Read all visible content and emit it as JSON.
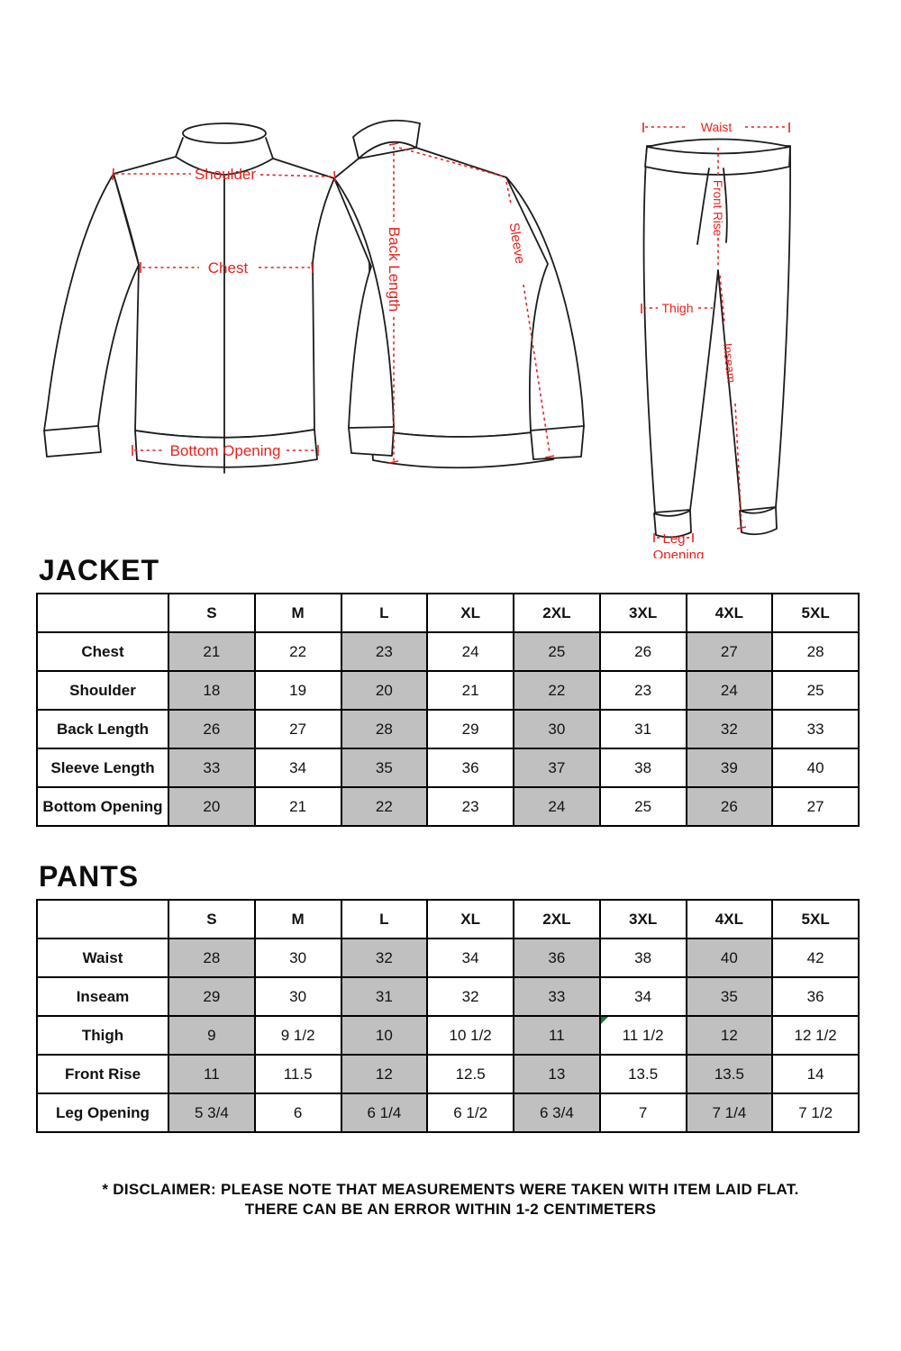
{
  "colors": {
    "accent_red": "#e8221c",
    "table_shade": "#c0c0c0",
    "comment_marker_green": "#1e7d32",
    "line_black": "#1c1c1c"
  },
  "diagram": {
    "labels": {
      "shoulder": "Shoulder",
      "chest": "Chest",
      "bottom_opening": "Bottom Opening",
      "back_length": "Back Length",
      "sleeve": "Sleeve",
      "waist": "Waist",
      "front_rise": "Front Rise",
      "thigh": "Thigh",
      "inseam": "Inseam",
      "leg_opening_line1": "Leg",
      "leg_opening_line2": "Opening"
    }
  },
  "jacket_section": {
    "title": "JACKET",
    "table": {
      "columns": [
        "S",
        "M",
        "L",
        "XL",
        "2XL",
        "3XL",
        "4XL",
        "5XL"
      ],
      "rows": [
        {
          "label": "Chest",
          "values": [
            "21",
            "22",
            "23",
            "24",
            "25",
            "26",
            "27",
            "28"
          ]
        },
        {
          "label": "Shoulder",
          "values": [
            "18",
            "19",
            "20",
            "21",
            "22",
            "23",
            "24",
            "25"
          ]
        },
        {
          "label": "Back Length",
          "values": [
            "26",
            "27",
            "28",
            "29",
            "30",
            "31",
            "32",
            "33"
          ]
        },
        {
          "label": "Sleeve Length",
          "values": [
            "33",
            "34",
            "35",
            "36",
            "37",
            "38",
            "39",
            "40"
          ]
        },
        {
          "label": "Bottom Opening",
          "values": [
            "20",
            "21",
            "22",
            "23",
            "24",
            "25",
            "26",
            "27"
          ]
        }
      ],
      "shaded_column_indexes": [
        0,
        2,
        4,
        6
      ]
    }
  },
  "pants_section": {
    "title": "PANTS",
    "table": {
      "columns": [
        "S",
        "M",
        "L",
        "XL",
        "2XL",
        "3XL",
        "4XL",
        "5XL"
      ],
      "rows": [
        {
          "label": "Waist",
          "values": [
            "28",
            "30",
            "32",
            "34",
            "36",
            "38",
            "40",
            "42"
          ]
        },
        {
          "label": "Inseam",
          "values": [
            "29",
            "30",
            "31",
            "32",
            "33",
            "34",
            "35",
            "36"
          ]
        },
        {
          "label": "Thigh",
          "values": [
            "9",
            "9 1/2",
            "10",
            "10 1/2",
            "11",
            "11 1/2",
            "12",
            "12 1/2"
          ]
        },
        {
          "label": "Front Rise",
          "values": [
            "11",
            "11.5",
            "12",
            "12.5",
            "13",
            "13.5",
            "13.5",
            "14"
          ]
        },
        {
          "label": "Leg Opening",
          "values": [
            "5 3/4",
            "6",
            "6 1/4",
            "6 1/2",
            "6 3/4",
            "7",
            "7 1/4",
            "7 1/2"
          ]
        }
      ],
      "shaded_column_indexes": [
        0,
        2,
        4,
        6
      ],
      "comment_marker": {
        "row": 2,
        "col": 5
      }
    }
  },
  "disclaimer": {
    "line1": "* DISCLAIMER: PLEASE NOTE THAT MEASUREMENTS WERE TAKEN WITH ITEM LAID FLAT.",
    "line2": "THERE CAN BE AN ERROR WITHIN 1-2 CENTIMETERS"
  }
}
